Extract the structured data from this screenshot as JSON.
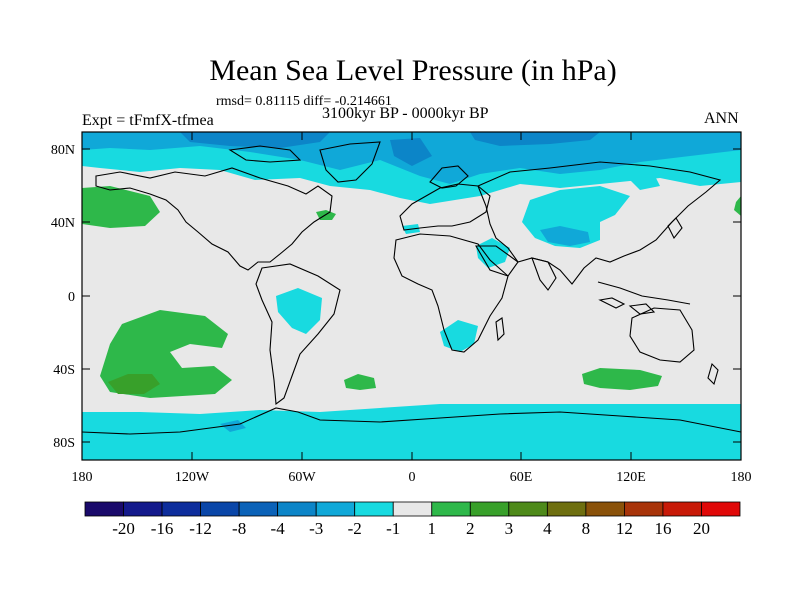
{
  "title": "Mean Sea Level Pressure (in hPa)",
  "stats": "rmsd= 0.81115 diff= -0.214661",
  "experiment": "Expt = tFmfX-tfmea",
  "period": "3100kyr BP - 0000kyr BP",
  "season": "ANN",
  "map": {
    "lat_ticks": [
      "80N",
      "40N",
      "0",
      "40S",
      "80S"
    ],
    "lon_ticks": [
      "180",
      "120W",
      "60W",
      "0",
      "60E",
      "120E",
      "180"
    ]
  },
  "colorbar": {
    "labels": [
      "-20",
      "-16",
      "-12",
      "-8",
      "-4",
      "-3",
      "-2",
      "-1",
      "1",
      "2",
      "3",
      "4",
      "8",
      "12",
      "16",
      "20"
    ],
    "colors": [
      "#1a0a6b",
      "#141a8c",
      "#0d2d9c",
      "#0a46a8",
      "#0b62b8",
      "#0c85c8",
      "#10a8d8",
      "#18dae0",
      "#e8e8e8",
      "#2eb84a",
      "#38a02a",
      "#4e8a1a",
      "#6e6f10",
      "#8a520a",
      "#a8340a",
      "#c81a08",
      "#e00808"
    ]
  },
  "fill_colors": {
    "ocean_neutral": "#e8e8e8",
    "neg_1": "#18dae0",
    "neg_2": "#10a8d8",
    "neg_3": "#0c85c8",
    "pos_1": "#2eb84a",
    "pos_2": "#38a02a",
    "pos_3": "#4e8a1a"
  }
}
